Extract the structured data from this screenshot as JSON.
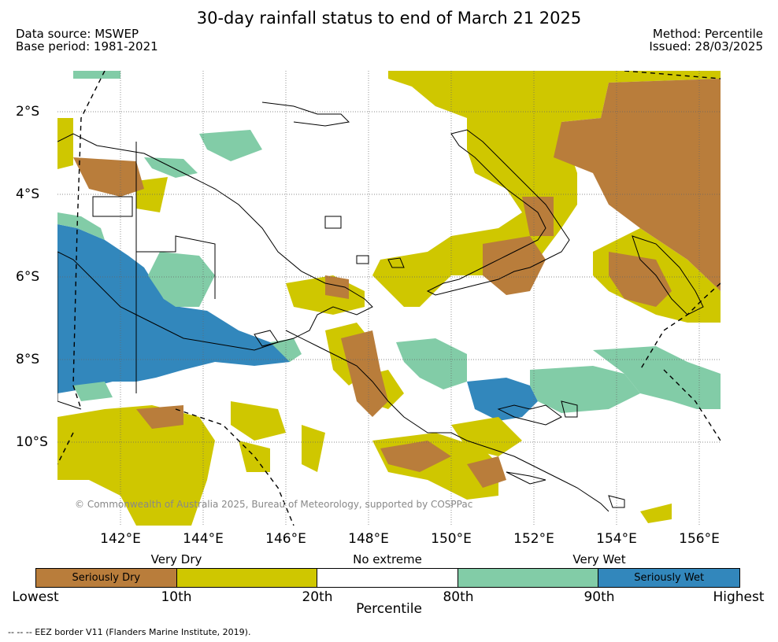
{
  "title": "30-day rainfall status to end of March 21 2025",
  "data_source": "Data source: MSWEP",
  "base_period": "Base period: 1981-2021",
  "method": "Method: Percentile",
  "issued": "Issued: 28/03/2025",
  "y_axis_labels": [
    "2°S",
    "4°S",
    "6°S",
    "8°S",
    "10°S"
  ],
  "x_axis_labels": [
    "142°E",
    "144°E",
    "146°E",
    "148°E",
    "150°E",
    "152°E",
    "154°E",
    "156°E"
  ],
  "copyright": "© Commonwealth of Australia 2025, Bureau of Meteorology, supported by COSPPac",
  "legend": {
    "top_labels": [
      "Very Dry",
      "No extreme",
      "Very Wet"
    ],
    "segments": [
      {
        "label": "Seriously Dry",
        "color": "#b97d3b"
      },
      {
        "label": "",
        "color": "#cfc700"
      },
      {
        "label": "",
        "color": "#ffffff"
      },
      {
        "label": "",
        "color": "#82cca7"
      },
      {
        "label": "Seriously Wet",
        "color": "#3287bc"
      }
    ],
    "bottom_labels": [
      "Lowest",
      "10th",
      "20th",
      "80th",
      "90th",
      "Highest"
    ],
    "axis_title": "Percentile"
  },
  "eez_note": "--  --  -- EEZ border V11 (Flanders Marine Institute, 2019)."
}
